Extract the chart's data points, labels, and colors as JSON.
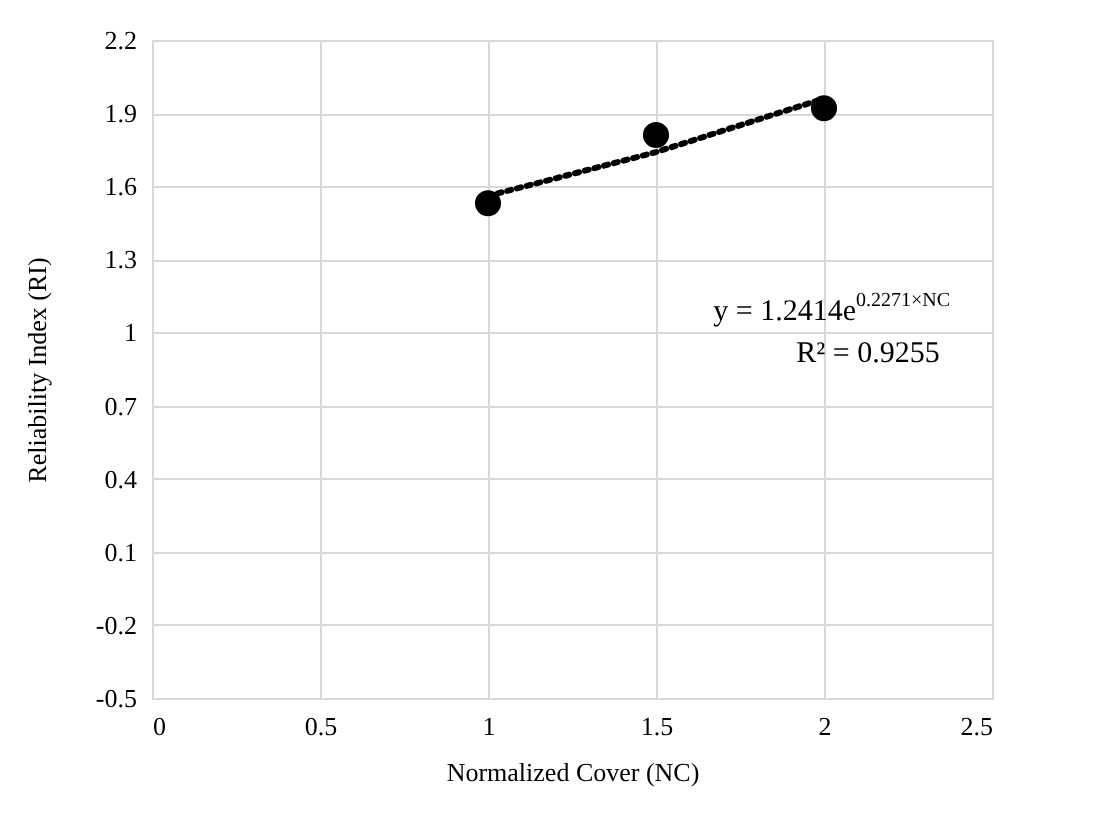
{
  "chart_data": {
    "type": "scatter",
    "xlabel": "Normalized Cover (NC)",
    "ylabel": "Reliability Index (RI)",
    "xlim": [
      0,
      2.5
    ],
    "xticks": [
      0,
      0.5,
      1,
      1.5,
      2,
      2.5
    ],
    "ylim": [
      -0.5,
      2.2
    ],
    "yticks": [
      -0.5,
      -0.2,
      0.1,
      0.4,
      0.7,
      1,
      1.3,
      1.6,
      1.9,
      2.2
    ],
    "grid": true,
    "series": [
      {
        "color": "#000000",
        "marker": "circle",
        "x": [
          1,
          1.5,
          2
        ],
        "values": [
          1.53,
          1.81,
          1.92
        ]
      },
      {
        "type": "line",
        "color": "#000000",
        "line_style": "dotted",
        "marker": "none",
        "x": [
          1,
          1.25,
          1.5,
          1.75,
          2
        ],
        "values": [
          1.56,
          1.65,
          1.74,
          1.85,
          1.96
        ]
      }
    ],
    "annotations": [
      "y = 1.2414e$^{0.2271×NC}$",
      "R² = 0.9255"
    ]
  }
}
